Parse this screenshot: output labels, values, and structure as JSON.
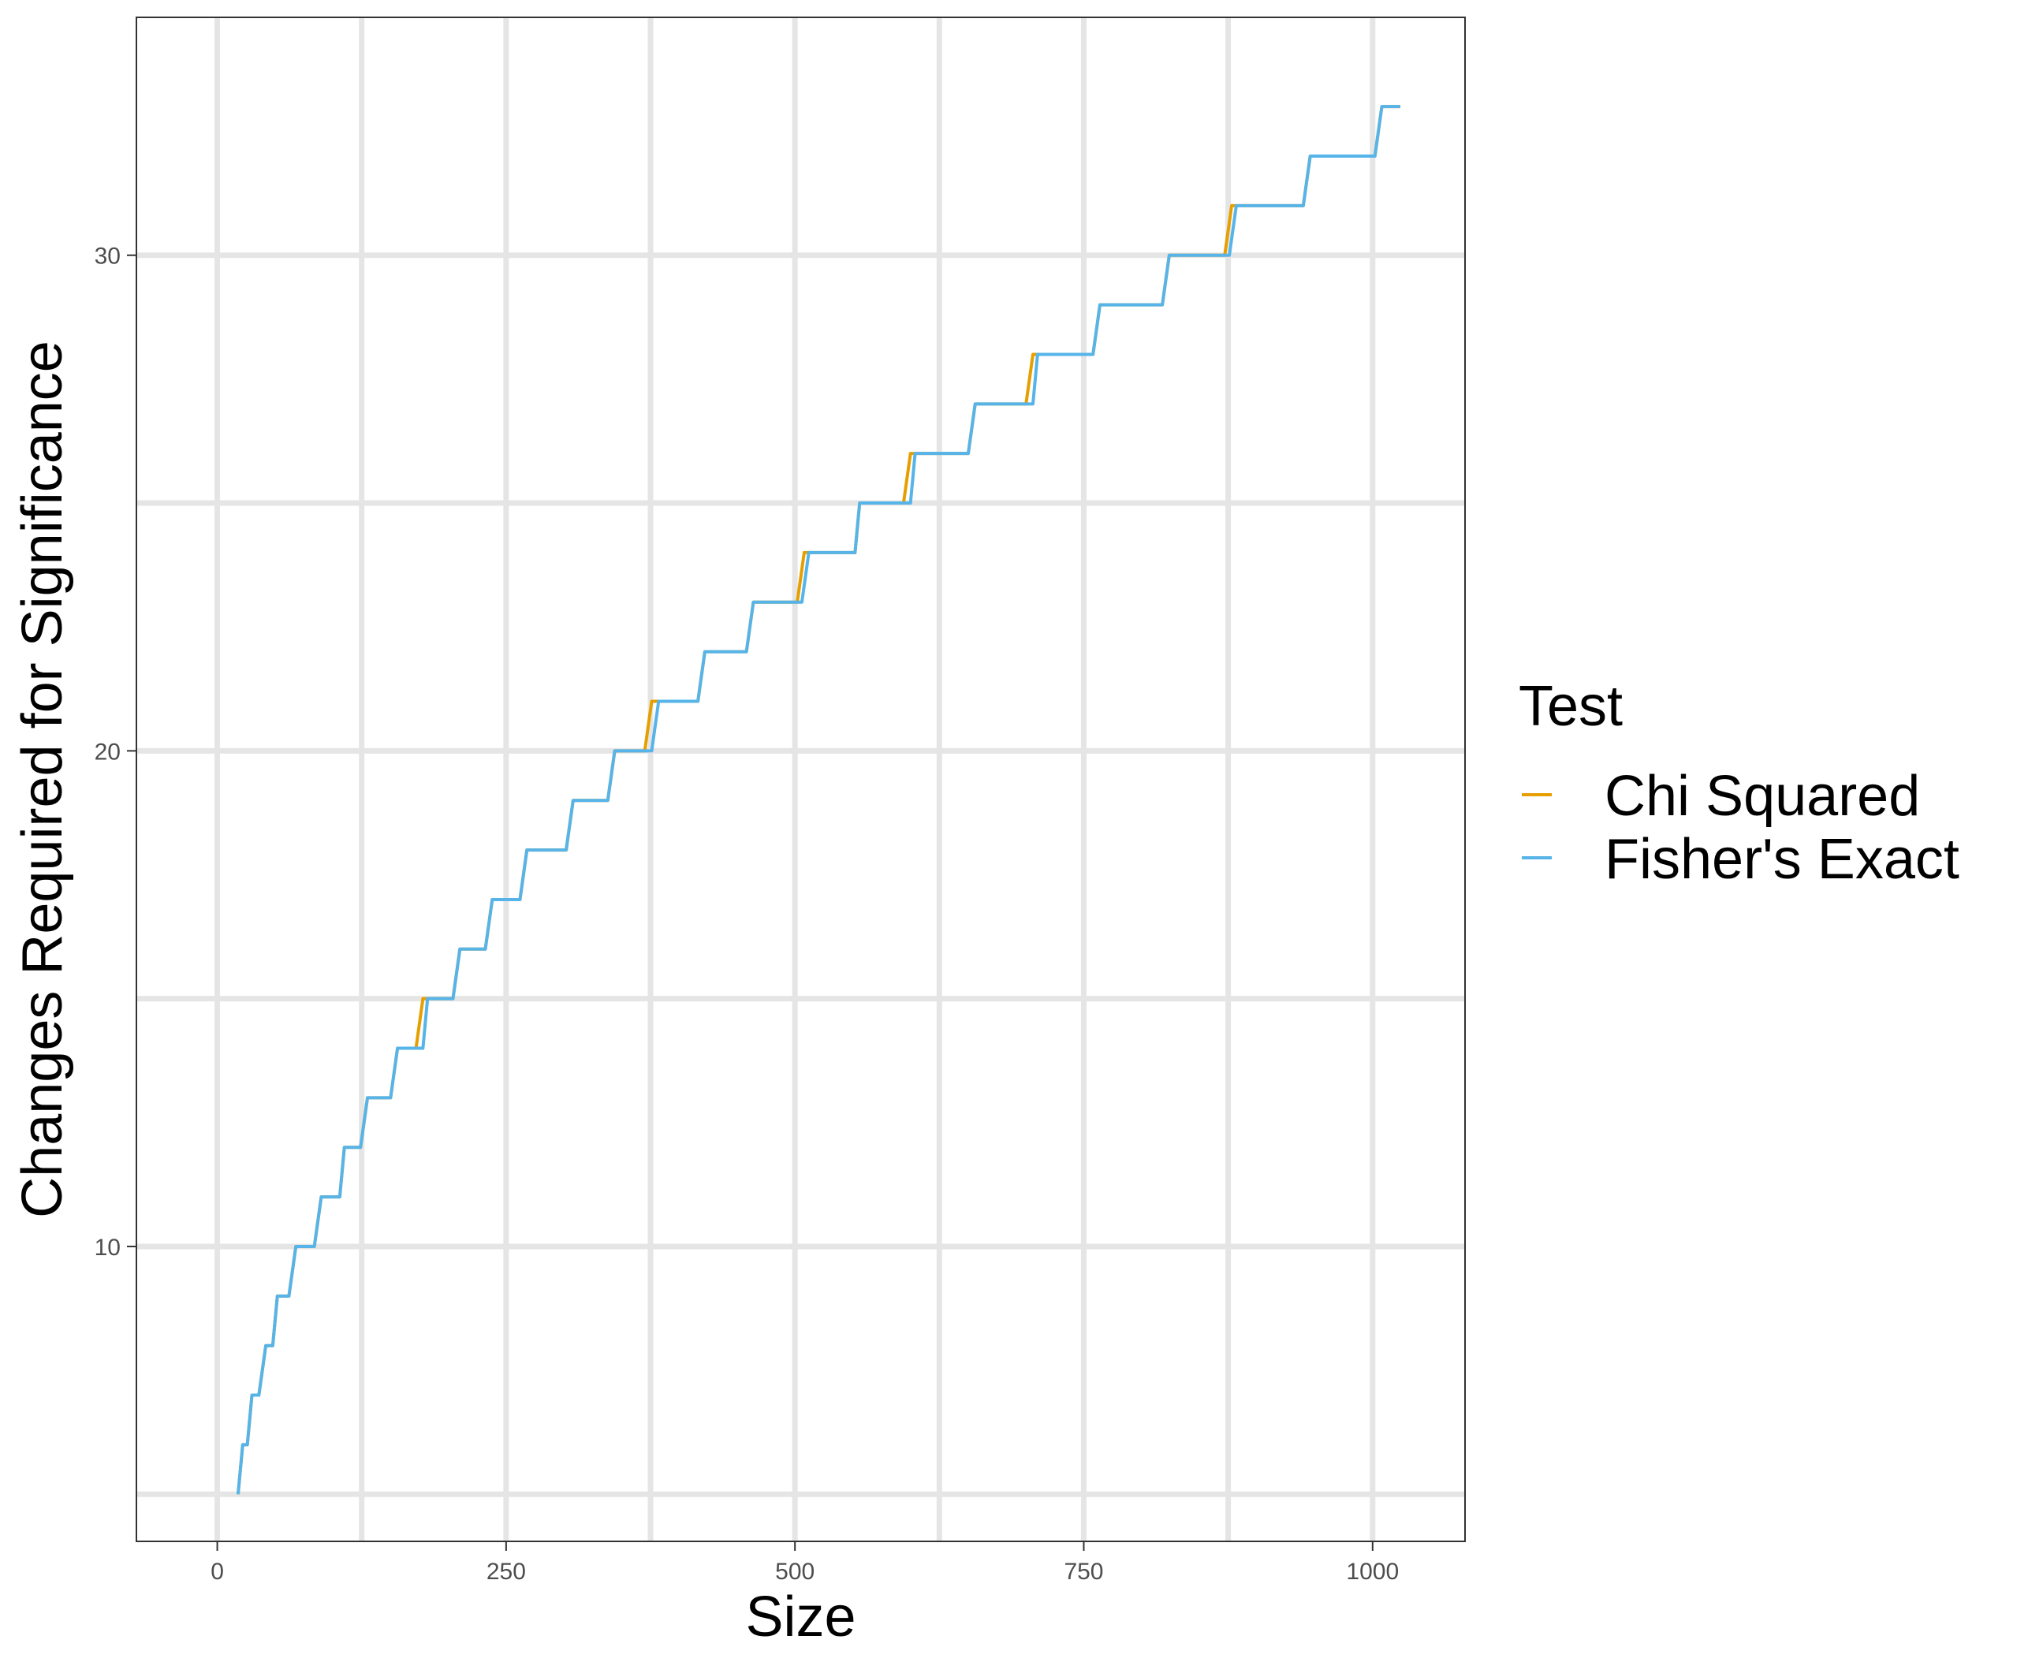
{
  "chart_data": {
    "type": "line",
    "title": "",
    "xlabel": "Size",
    "ylabel": "Changes Required for Significance",
    "xlim": [
      -70,
      1080
    ],
    "ylim": [
      4.05,
      34.8
    ],
    "x_ticks": [
      0,
      250,
      500,
      750,
      1000
    ],
    "y_ticks": [
      10,
      20,
      30
    ],
    "grid": true,
    "legend": {
      "title": "Test",
      "position": "right"
    },
    "series": [
      {
        "name": "Chi Squared",
        "color": "#E69F00",
        "points": [
          [
            18,
            5
          ],
          [
            22,
            6
          ],
          [
            26,
            6
          ],
          [
            30,
            7
          ],
          [
            36,
            7
          ],
          [
            42,
            8
          ],
          [
            48,
            8
          ],
          [
            52,
            9
          ],
          [
            62,
            9
          ],
          [
            68,
            10
          ],
          [
            84,
            10
          ],
          [
            90,
            11
          ],
          [
            106,
            11
          ],
          [
            110,
            12
          ],
          [
            124,
            12
          ],
          [
            130,
            13
          ],
          [
            150,
            13
          ],
          [
            156,
            14
          ],
          [
            172,
            14
          ],
          [
            178,
            15
          ],
          [
            204,
            15
          ],
          [
            210,
            16
          ],
          [
            232,
            16
          ],
          [
            238,
            17
          ],
          [
            262,
            17
          ],
          [
            268,
            18
          ],
          [
            302,
            18
          ],
          [
            308,
            19
          ],
          [
            338,
            19
          ],
          [
            344,
            20
          ],
          [
            370,
            20
          ],
          [
            376,
            21
          ],
          [
            416,
            21
          ],
          [
            422,
            22
          ],
          [
            458,
            22
          ],
          [
            464,
            23
          ],
          [
            502,
            23
          ],
          [
            508,
            24
          ],
          [
            552,
            24
          ],
          [
            556,
            25
          ],
          [
            594,
            25
          ],
          [
            600,
            26
          ],
          [
            650,
            26
          ],
          [
            656,
            27
          ],
          [
            700,
            27
          ],
          [
            706,
            28
          ],
          [
            758,
            28
          ],
          [
            764,
            29
          ],
          [
            818,
            29
          ],
          [
            824,
            30
          ],
          [
            872,
            30
          ],
          [
            878,
            31
          ],
          [
            940,
            31
          ],
          [
            946,
            32
          ],
          [
            1002,
            32
          ],
          [
            1008,
            33
          ],
          [
            1024,
            33
          ]
        ]
      },
      {
        "name": "Fisher's Exact",
        "color": "#56B4E9",
        "points": [
          [
            18,
            5
          ],
          [
            22,
            6
          ],
          [
            26,
            6
          ],
          [
            30,
            7
          ],
          [
            36,
            7
          ],
          [
            42,
            8
          ],
          [
            48,
            8
          ],
          [
            52,
            9
          ],
          [
            62,
            9
          ],
          [
            68,
            10
          ],
          [
            84,
            10
          ],
          [
            90,
            11
          ],
          [
            106,
            11
          ],
          [
            110,
            12
          ],
          [
            124,
            12
          ],
          [
            130,
            13
          ],
          [
            150,
            13
          ],
          [
            156,
            14
          ],
          [
            178,
            14
          ],
          [
            182,
            15
          ],
          [
            204,
            15
          ],
          [
            210,
            16
          ],
          [
            232,
            16
          ],
          [
            238,
            17
          ],
          [
            262,
            17
          ],
          [
            268,
            18
          ],
          [
            302,
            18
          ],
          [
            308,
            19
          ],
          [
            338,
            19
          ],
          [
            344,
            20
          ],
          [
            376,
            20
          ],
          [
            382,
            21
          ],
          [
            416,
            21
          ],
          [
            422,
            22
          ],
          [
            458,
            22
          ],
          [
            464,
            23
          ],
          [
            506,
            23
          ],
          [
            512,
            24
          ],
          [
            552,
            24
          ],
          [
            556,
            25
          ],
          [
            600,
            25
          ],
          [
            604,
            26
          ],
          [
            650,
            26
          ],
          [
            656,
            27
          ],
          [
            706,
            27
          ],
          [
            710,
            28
          ],
          [
            758,
            28
          ],
          [
            764,
            29
          ],
          [
            818,
            29
          ],
          [
            824,
            30
          ],
          [
            876,
            30
          ],
          [
            882,
            31
          ],
          [
            940,
            31
          ],
          [
            946,
            32
          ],
          [
            1002,
            32
          ],
          [
            1008,
            33
          ],
          [
            1024,
            33
          ]
        ]
      }
    ]
  }
}
